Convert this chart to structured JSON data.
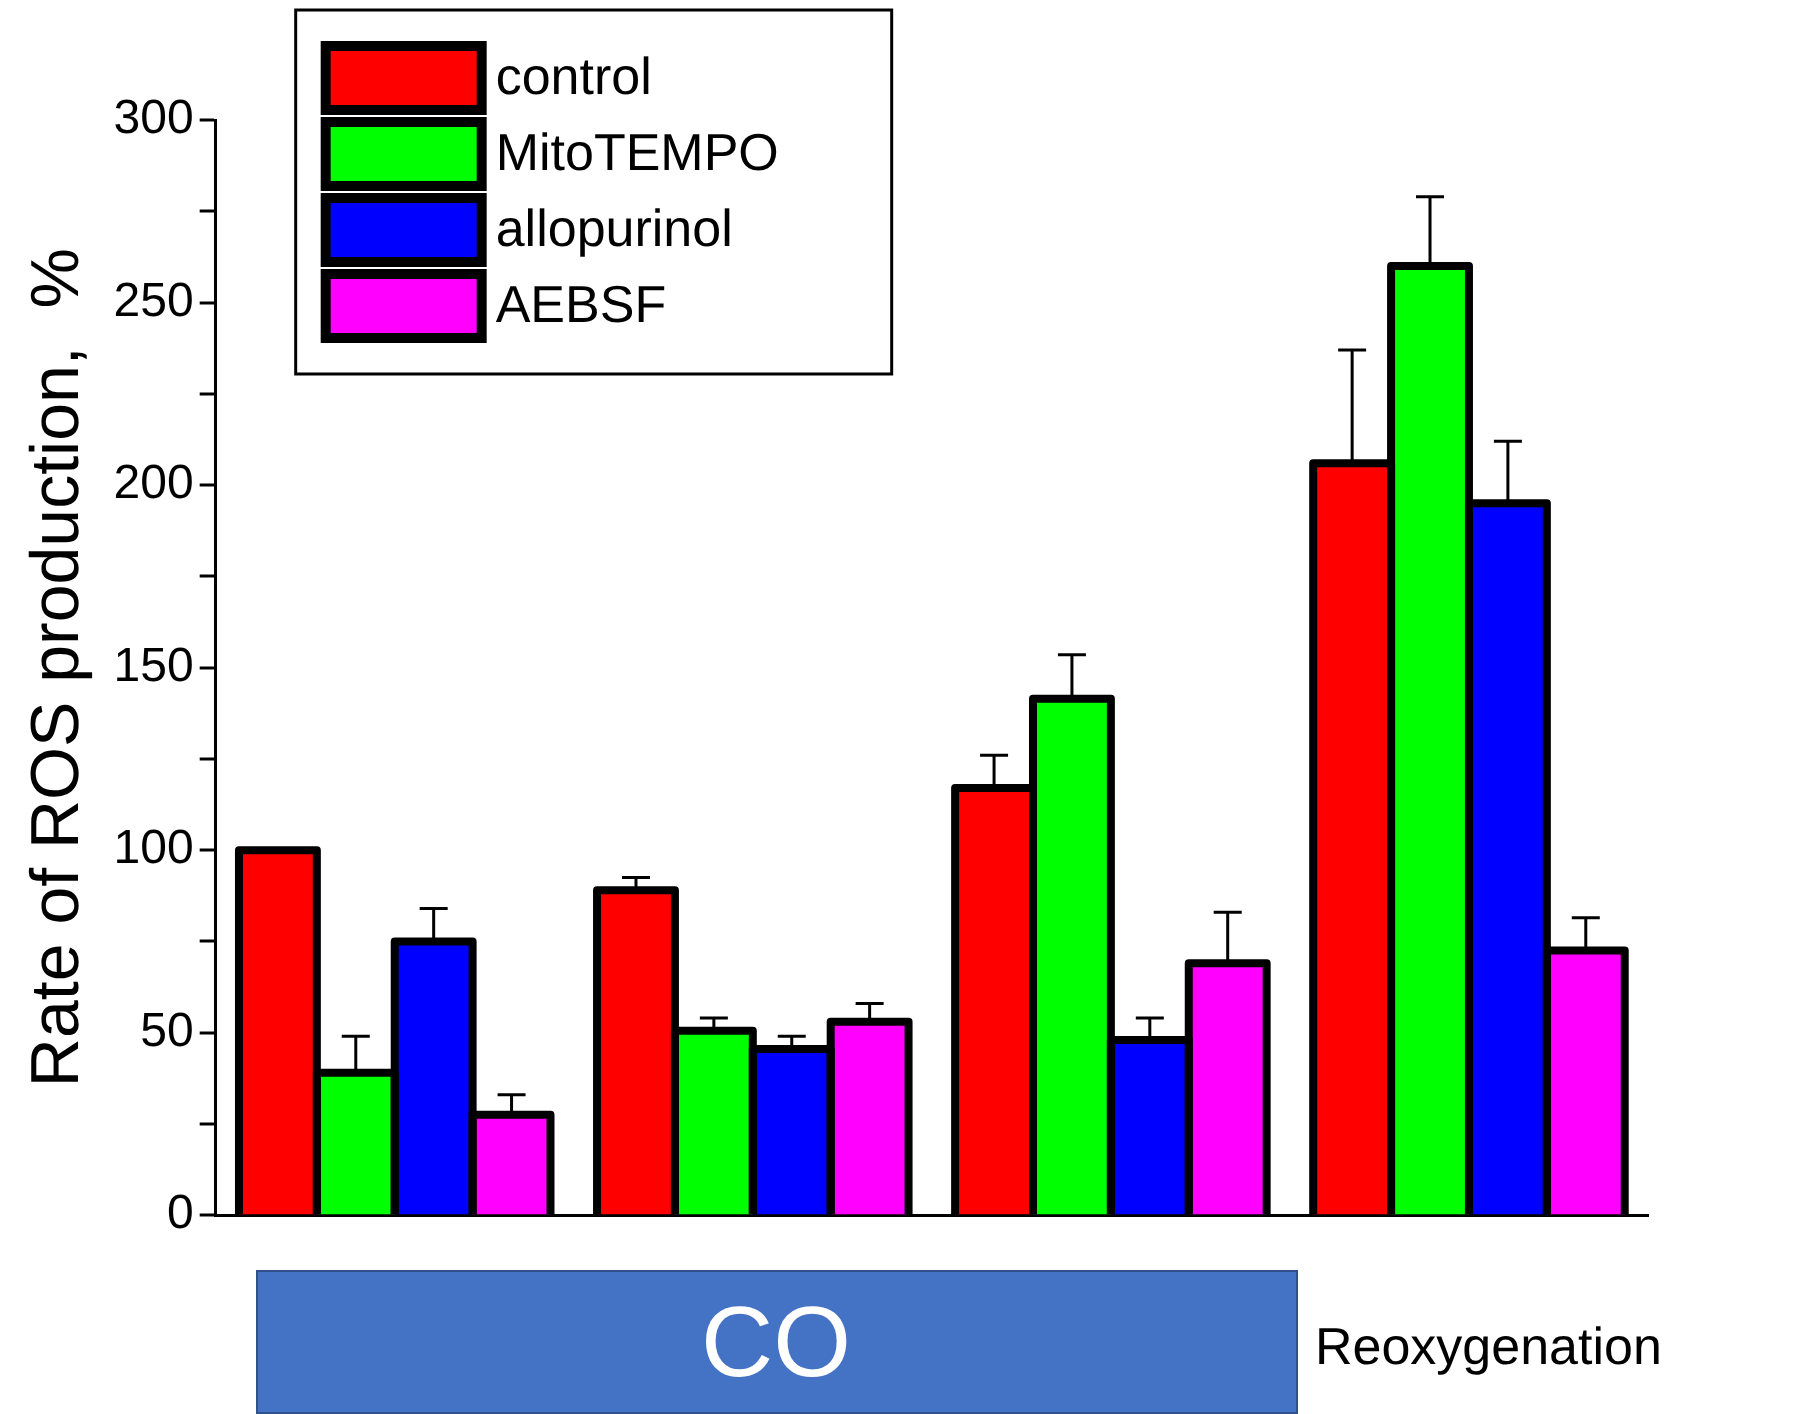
{
  "chart_data": {
    "type": "bar",
    "ylabel": "Rate of ROS production,  %",
    "categories": [
      null,
      null,
      null,
      null
    ],
    "series": [
      {
        "name": "control",
        "color": "#ff0000",
        "values": [
          100,
          89,
          117,
          206
        ],
        "errors": [
          [
            100,
            100
          ],
          [
            89,
            92.5
          ],
          [
            117,
            126
          ],
          [
            206,
            237
          ]
        ]
      },
      {
        "name": "MitoTEMPO",
        "color": "#00ff00",
        "values": [
          39,
          50.5,
          141.5,
          260
        ],
        "errors": [
          [
            39,
            49
          ],
          [
            50.5,
            54
          ],
          [
            141.5,
            153.5
          ],
          [
            260,
            279
          ]
        ]
      },
      {
        "name": "allopurinol",
        "color": "#0000ff",
        "values": [
          75,
          45.5,
          48,
          195
        ],
        "errors": [
          [
            75,
            84
          ],
          [
            45.5,
            49
          ],
          [
            48,
            54
          ],
          [
            195,
            212
          ]
        ]
      },
      {
        "name": "AEBSF",
        "color": "#ff00ff",
        "values": [
          27.5,
          53,
          69,
          72.5
        ],
        "errors": [
          [
            27.5,
            33
          ],
          [
            53,
            58
          ],
          [
            69,
            83
          ],
          [
            72.5,
            81.5
          ]
        ]
      }
    ],
    "ylim": [
      0,
      300
    ],
    "yticks": [
      0,
      {
        "value": 25,
        "label": null
      },
      50,
      {
        "value": 75,
        "label": null
      },
      100,
      {
        "value": 125,
        "label": null
      },
      150,
      {
        "value": 175,
        "label": null
      },
      200,
      {
        "value": 225,
        "label": null
      },
      250,
      {
        "value": 275,
        "label": null
      },
      300
    ],
    "grid": false,
    "legend": "top left",
    "annotations": [
      "CO",
      "Reoxygenation"
    ]
  }
}
